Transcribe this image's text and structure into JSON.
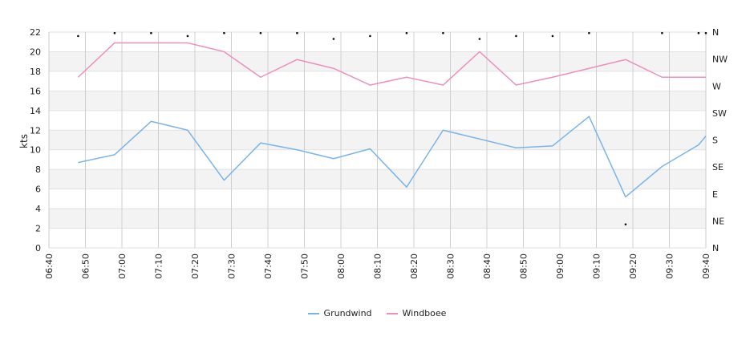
{
  "chart_data": {
    "type": "line",
    "ylabel": "kts",
    "ylim": [
      0,
      22
    ],
    "yticks": [
      0,
      2,
      4,
      6,
      8,
      10,
      12,
      14,
      16,
      18,
      20,
      22
    ],
    "xticks": [
      "06:40",
      "06:50",
      "07:00",
      "07:10",
      "07:20",
      "07:30",
      "07:40",
      "07:50",
      "08:00",
      "08:10",
      "08:20",
      "08:30",
      "08:40",
      "08:50",
      "09:00",
      "09:10",
      "09:20",
      "09:30",
      "09:40"
    ],
    "x": [
      "06:48",
      "06:58",
      "07:08",
      "07:18",
      "07:28",
      "07:38",
      "07:48",
      "07:58",
      "08:08",
      "08:18",
      "08:28",
      "08:38",
      "08:48",
      "08:58",
      "09:08",
      "09:18",
      "09:28",
      "09:38",
      "09:40"
    ],
    "right_axis_labels": [
      "N",
      "NE",
      "E",
      "SE",
      "S",
      "SW",
      "W",
      "NW",
      "N"
    ],
    "grid": true,
    "legend_position": "bottom-center",
    "series": [
      {
        "name": "Grundwind",
        "color": "#7ab4ea",
        "values": [
          8.7,
          9.5,
          12.9,
          12.0,
          6.9,
          10.7,
          10.0,
          9.1,
          10.1,
          6.2,
          12.0,
          11.1,
          10.2,
          10.4,
          13.4,
          5.2,
          8.3,
          10.5,
          11.4
        ]
      },
      {
        "name": "Windboee",
        "color": "#ee8fbd",
        "values": [
          17.4,
          20.9,
          20.9,
          20.9,
          20.0,
          17.4,
          19.2,
          18.3,
          16.6,
          17.4,
          16.6,
          20.0,
          16.6,
          17.4,
          18.3,
          19.2,
          17.4,
          17.4,
          17.4
        ]
      }
    ],
    "direction_marker_values": [
      21.6,
      21.9,
      21.9,
      21.6,
      21.9,
      21.9,
      21.9,
      21.3,
      21.6,
      21.9,
      21.9,
      21.3,
      21.6,
      21.6,
      21.9,
      2.4,
      21.9,
      21.9,
      21.9
    ]
  }
}
